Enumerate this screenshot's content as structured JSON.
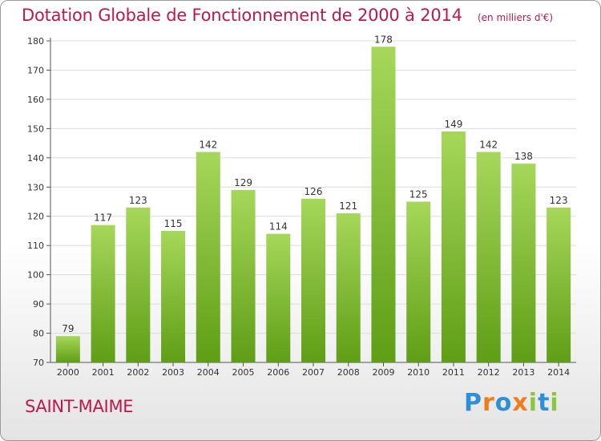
{
  "title": "Dotation Globale de Fonctionnement de 2000 à 2014",
  "unit_label": "(en milliers d'€)",
  "commune": "SAINT-MAIME",
  "logo": {
    "text": "Proxiti",
    "letters": [
      {
        "ch": "P",
        "color": "#2e8fd6"
      },
      {
        "ch": "r",
        "color": "#f07d1a"
      },
      {
        "ch": "o",
        "color": "#2e8fd6"
      },
      {
        "ch": "x",
        "color": "#f07d1a"
      },
      {
        "ch": "i",
        "color": "#8cc63f"
      },
      {
        "ch": "t",
        "color": "#2e8fd6"
      },
      {
        "ch": "i",
        "color": "#8cc63f"
      }
    ]
  },
  "colors": {
    "accent": "#c0174b",
    "bar_top": "#a6d75a",
    "bar_bottom": "#5f9e16",
    "grid": "#dcdcdc"
  },
  "chart_data": {
    "type": "bar",
    "title": "Dotation Globale de Fonctionnement de 2000 à 2014",
    "subtitle": "(en milliers d'€)",
    "xlabel": "",
    "ylabel": "",
    "categories": [
      "2000",
      "2001",
      "2002",
      "2003",
      "2004",
      "2005",
      "2006",
      "2007",
      "2008",
      "2009",
      "2010",
      "2011",
      "2012",
      "2013",
      "2014"
    ],
    "values": [
      79,
      117,
      123,
      115,
      142,
      129,
      114,
      126,
      121,
      178,
      125,
      149,
      142,
      138,
      123
    ],
    "ylim": [
      70,
      180
    ],
    "yticks": [
      70,
      80,
      90,
      100,
      110,
      120,
      130,
      140,
      150,
      160,
      170,
      180
    ],
    "grid": true,
    "data_labels": true,
    "legend": "none"
  }
}
